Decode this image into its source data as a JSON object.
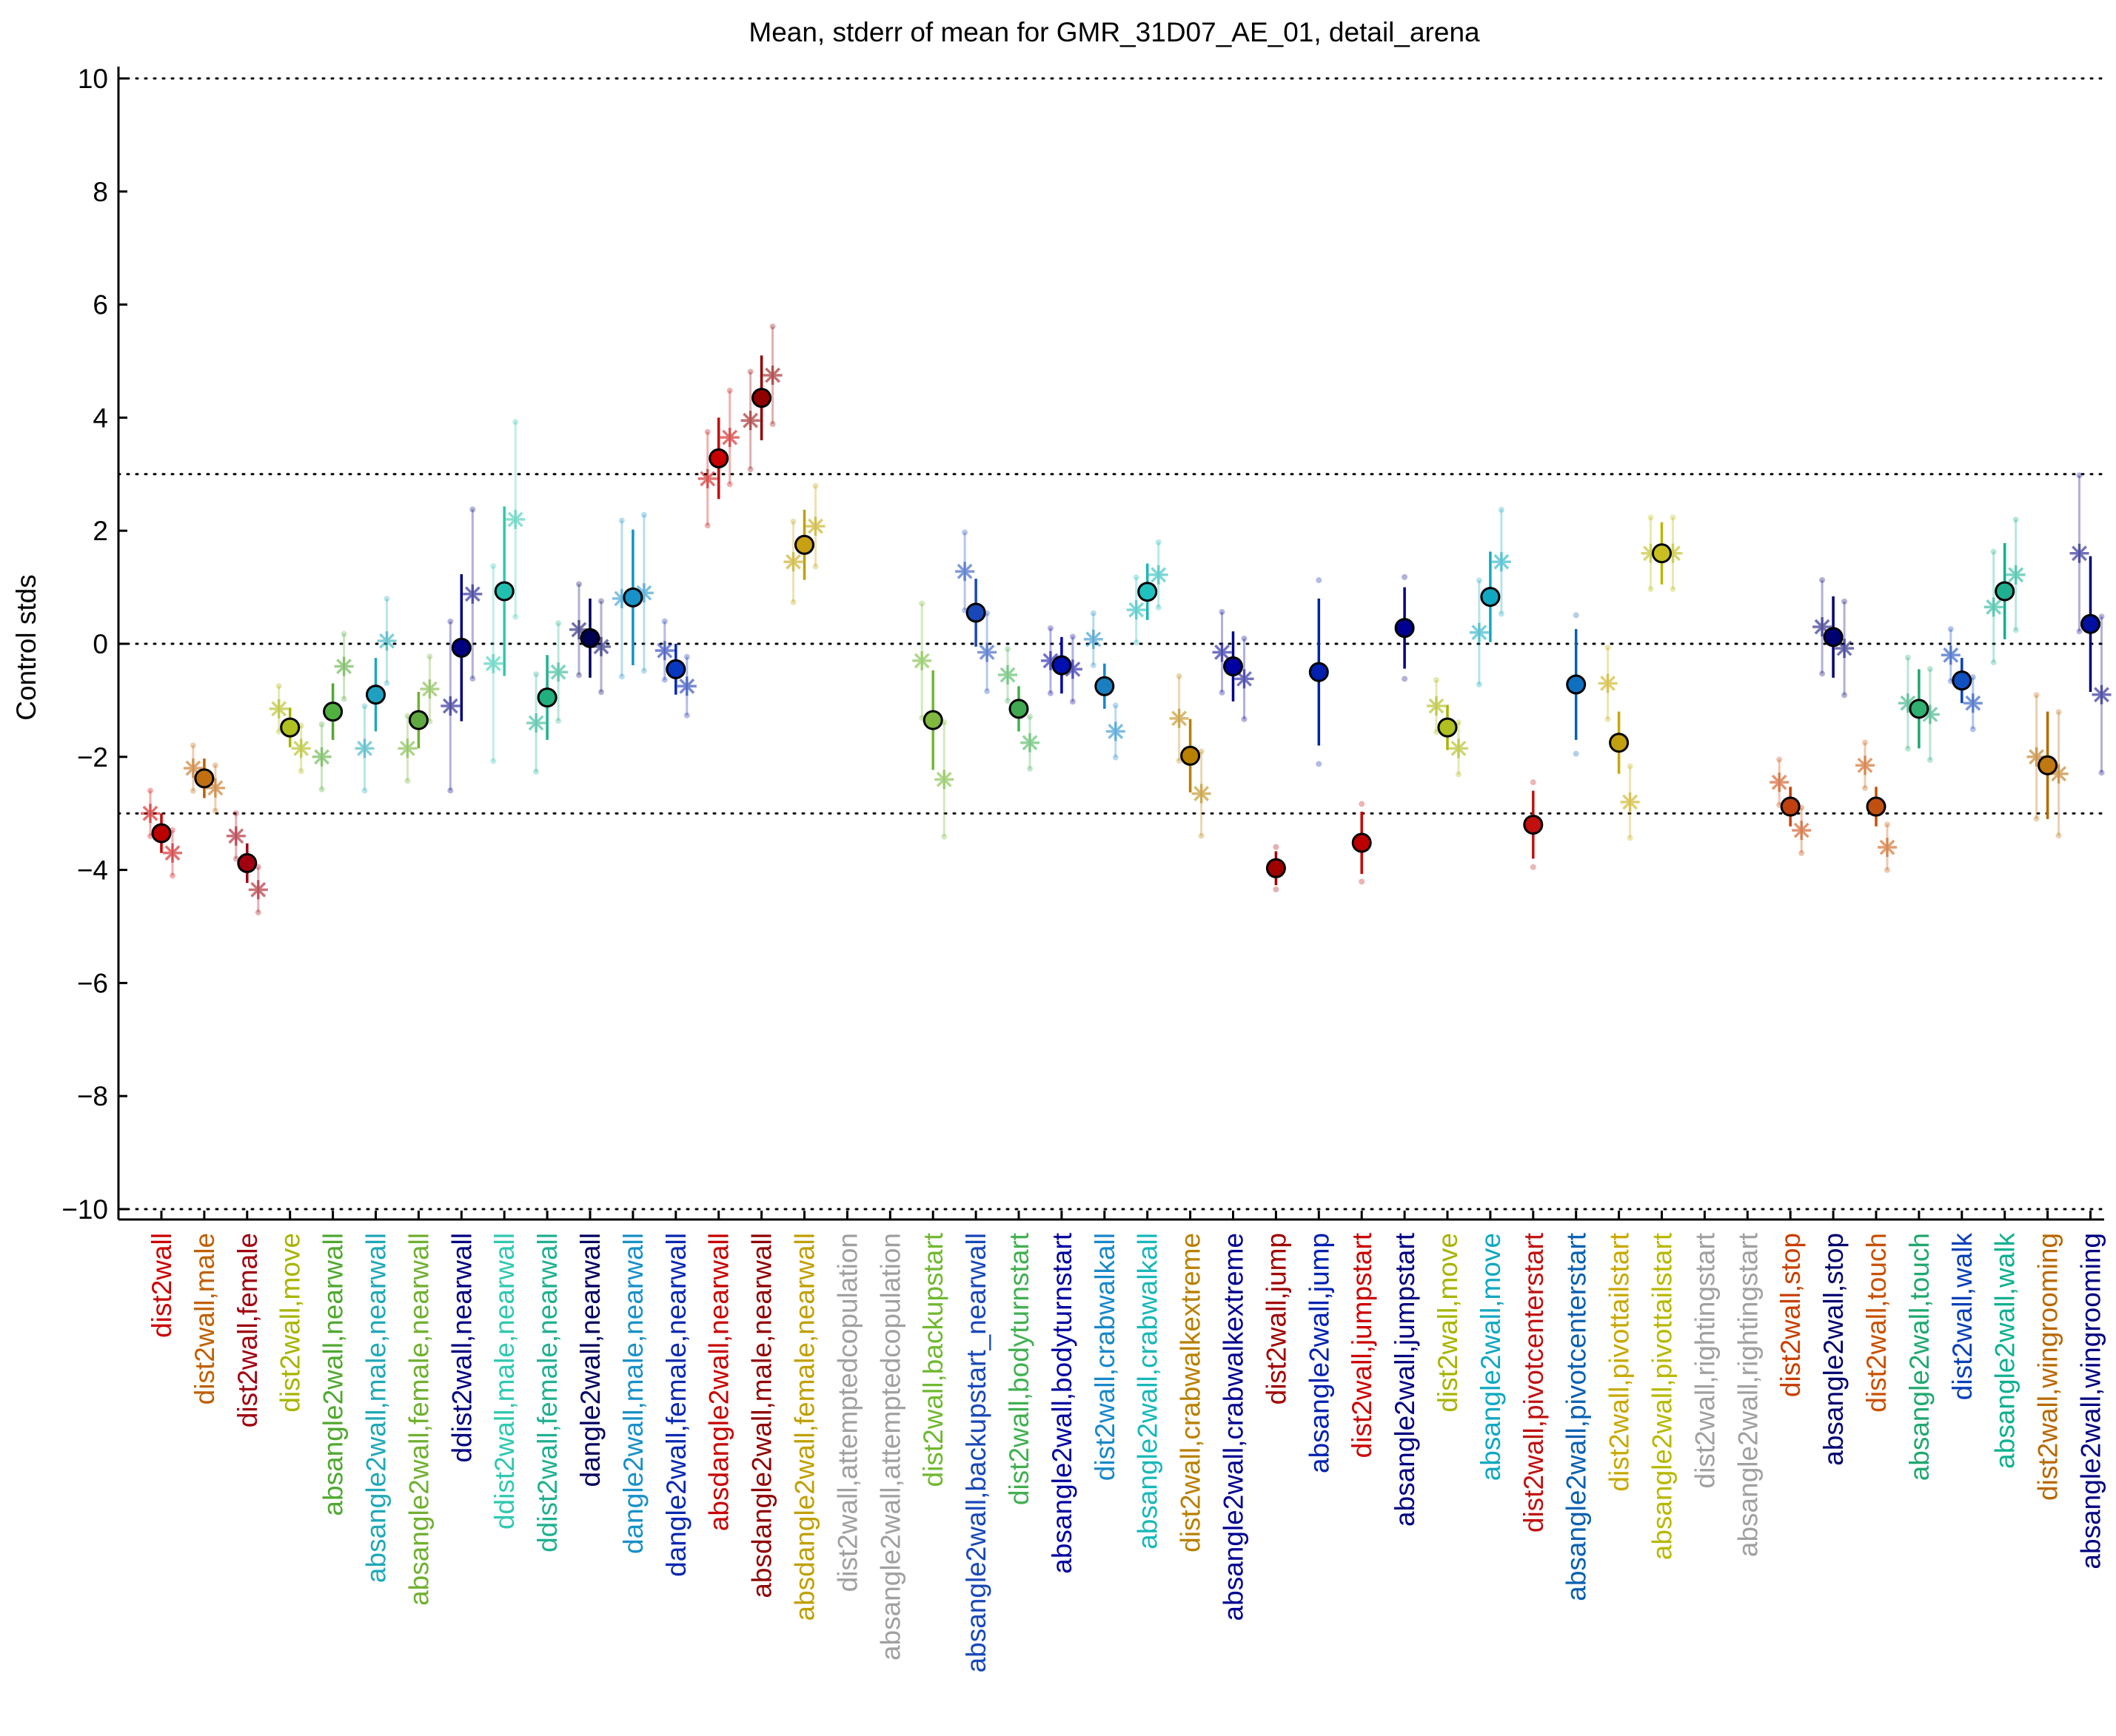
{
  "chart_data": {
    "type": "scatter",
    "title": "Mean, stderr of mean for GMR_31D07_AE_01, detail_arena",
    "ylabel": "Control stds",
    "ylim": [
      -10,
      10
    ],
    "yticks": [
      10,
      8,
      6,
      4,
      2,
      0,
      -2,
      -4,
      -6,
      -8,
      -10
    ],
    "ytick_labels": [
      "10",
      "8",
      "6",
      "4",
      "2",
      "0",
      "−2",
      "−4",
      "−6",
      "−8",
      "−10"
    ],
    "reference_lines": [
      10,
      3,
      0,
      -3,
      -10
    ],
    "grid": false,
    "legend": "none",
    "categories": [
      {
        "label": "dist2wall",
        "color": "#cc0000",
        "mean": -3.35,
        "err": 0.35,
        "male": -3.0,
        "female": -3.7,
        "fill": "#bb0000"
      },
      {
        "label": "dist2wall,male",
        "color": "#c06000",
        "mean": -2.38,
        "err": 0.35,
        "male": -2.2,
        "female": -2.55,
        "fill": "#c07010"
      },
      {
        "label": "dist2wall,female",
        "color": "#a00010",
        "mean": -3.88,
        "err": 0.35,
        "male": -3.4,
        "female": -4.35,
        "fill": "#a00010"
      },
      {
        "label": "dist2wall,move",
        "color": "#a8b400",
        "mean": -1.48,
        "err": 0.35,
        "male": -1.15,
        "female": -1.85,
        "fill": "#b0c020"
      },
      {
        "label": "absangle2wall,nearwall",
        "color": "#50a830",
        "mean": -1.2,
        "err": 0.5,
        "male": -2.0,
        "female": -0.4,
        "fill": "#50b040"
      },
      {
        "label": "absangle2wall,male,nearwall",
        "color": "#20a8b8",
        "mean": -0.9,
        "err": 0.65,
        "male": -1.85,
        "female": 0.05,
        "fill": "#20a0c0"
      },
      {
        "label": "absangle2wall,female,nearwall",
        "color": "#70b030",
        "mean": -1.35,
        "err": 0.5,
        "male": -1.85,
        "female": -0.8,
        "fill": "#60a840"
      },
      {
        "label": "ddist2wall,nearwall",
        "color": "#000080",
        "mean": -0.07,
        "err": 1.3,
        "male": -1.1,
        "female": 0.88,
        "fill": "#000080"
      },
      {
        "label": "ddist2wall,male,nearwall",
        "color": "#30c8b0",
        "mean": 0.93,
        "err": 1.5,
        "male": -0.35,
        "female": 2.2,
        "fill": "#20c0b0"
      },
      {
        "label": "ddist2wall,female,nearwall",
        "color": "#20b090",
        "mean": -0.95,
        "err": 0.75,
        "male": -1.4,
        "female": -0.5,
        "fill": "#20b080"
      },
      {
        "label": "dangle2wall,nearwall",
        "color": "#000060",
        "mean": 0.1,
        "err": 0.7,
        "male": 0.25,
        "female": -0.05,
        "fill": "#000050"
      },
      {
        "label": "dangle2wall,male,nearwall",
        "color": "#1890c8",
        "mean": 0.82,
        "err": 1.2,
        "male": 0.8,
        "female": 0.9,
        "fill": "#1890c8"
      },
      {
        "label": "dangle2wall,female,nearwall",
        "color": "#0828b0",
        "mean": -0.45,
        "err": 0.45,
        "male": -0.12,
        "female": -0.75,
        "fill": "#0838c0"
      },
      {
        "label": "absdangle2wall,nearwall",
        "color": "#c80000",
        "mean": 3.28,
        "err": 0.72,
        "male": 2.92,
        "female": 3.65,
        "fill": "#c80000"
      },
      {
        "label": "absdangle2wall,male,nearwall",
        "color": "#900000",
        "mean": 4.35,
        "err": 0.75,
        "male": 3.95,
        "female": 4.75,
        "fill": "#900000"
      },
      {
        "label": "absdangle2wall,female,nearwall",
        "color": "#c0a000",
        "mean": 1.75,
        "err": 0.62,
        "male": 1.45,
        "female": 2.08,
        "fill": "#c8a010"
      },
      {
        "label": "dist2wall,attemptedcopulation",
        "color": "#a0a0a0"
      },
      {
        "label": "absangle2wall,attemptedcopulation",
        "color": "#a0a0a0"
      },
      {
        "label": "dist2wall,backupstart",
        "color": "#70b830",
        "mean": -1.35,
        "err": 0.88,
        "male": -0.3,
        "female": -2.4,
        "fill": "#80b840"
      },
      {
        "label": "absangle2wall,backupstart_nearwall",
        "color": "#1848b8",
        "mean": 0.55,
        "err": 0.6,
        "male": 1.28,
        "female": -0.15,
        "fill": "#1848b8"
      },
      {
        "label": "dist2wall,bodyturnstart",
        "color": "#40b050",
        "mean": -1.15,
        "err": 0.4,
        "male": -0.55,
        "female": -1.75,
        "fill": "#40a850"
      },
      {
        "label": "absangle2wall,bodyturnstart",
        "color": "#0000a0",
        "mean": -0.38,
        "err": 0.5,
        "male": -0.3,
        "female": -0.45,
        "fill": "#0010b0"
      },
      {
        "label": "dist2wall,crabwalkall",
        "color": "#1888c8",
        "mean": -0.75,
        "err": 0.4,
        "male": 0.08,
        "female": -1.55,
        "fill": "#1880c0"
      },
      {
        "label": "absangle2wall,crabwalkall",
        "color": "#18b8b8",
        "mean": 0.92,
        "err": 0.5,
        "male": 0.6,
        "female": 1.22,
        "fill": "#20c0c0"
      },
      {
        "label": "dist2wall,crabwalkextreme",
        "color": "#b88000",
        "mean": -1.98,
        "err": 0.65,
        "male": -1.32,
        "female": -2.65,
        "fill": "#b88000"
      },
      {
        "label": "absangle2wall,crabwalkextreme",
        "color": "#000090",
        "mean": -0.4,
        "err": 0.62,
        "male": -0.15,
        "female": -0.62,
        "fill": "#0000a0"
      },
      {
        "label": "dist2wall,jump",
        "color": "#a00000",
        "mean": -3.97,
        "err": 0.3,
        "fill": "#a00000"
      },
      {
        "label": "absangle2wall,jump",
        "color": "#0020b0",
        "mean": -0.5,
        "err": 1.3,
        "fill": "#0020b0"
      },
      {
        "label": "dist2wall,jumpstart",
        "color": "#cc0000",
        "mean": -3.52,
        "err": 0.55,
        "fill": "#bb0000"
      },
      {
        "label": "absangle2wall,jumpstart",
        "color": "#000080",
        "mean": 0.28,
        "err": 0.72,
        "fill": "#000090"
      },
      {
        "label": "dist2wall,move",
        "color": "#a8b400",
        "mean": -1.48,
        "err": 0.4,
        "male": -1.1,
        "female": -1.85,
        "fill": "#b0c020"
      },
      {
        "label": "absangle2wall,move",
        "color": "#10a8c0",
        "mean": 0.83,
        "err": 0.8,
        "male": 0.2,
        "female": 1.45,
        "fill": "#10a8c0"
      },
      {
        "label": "dist2wall,pivotcenterstart",
        "color": "#c01010",
        "mean": -3.2,
        "err": 0.6,
        "fill": "#c01010"
      },
      {
        "label": "absangle2wall,pivotcenterstart",
        "color": "#0860b0",
        "mean": -0.72,
        "err": 0.98,
        "fill": "#1070c0"
      },
      {
        "label": "dist2wall,pivottailstart",
        "color": "#c8a800",
        "mean": -1.75,
        "err": 0.55,
        "male": -0.7,
        "female": -2.8,
        "fill": "#c0a010"
      },
      {
        "label": "absangle2wall,pivottailstart",
        "color": "#b8b800",
        "mean": 1.6,
        "err": 0.55,
        "male": 1.6,
        "female": 1.6,
        "fill": "#c8c020"
      },
      {
        "label": "dist2wall,rightingstart",
        "color": "#a0a0a0"
      },
      {
        "label": "absangle2wall,rightingstart",
        "color": "#a0a0a0"
      },
      {
        "label": "dist2wall,stop",
        "color": "#c84000",
        "mean": -2.88,
        "err": 0.35,
        "male": -2.45,
        "female": -3.3,
        "fill": "#c04010"
      },
      {
        "label": "absangle2wall,stop",
        "color": "#000070",
        "mean": 0.12,
        "err": 0.72,
        "male": 0.3,
        "female": -0.08,
        "fill": "#000070"
      },
      {
        "label": "dist2wall,touch",
        "color": "#c85000",
        "mean": -2.88,
        "err": 0.35,
        "male": -2.15,
        "female": -3.6,
        "fill": "#c05010"
      },
      {
        "label": "absangle2wall,touch",
        "color": "#20a870",
        "mean": -1.15,
        "err": 0.7,
        "male": -1.05,
        "female": -1.25,
        "fill": "#30b070"
      },
      {
        "label": "dist2wall,walk",
        "color": "#0840b8",
        "mean": -0.65,
        "err": 0.4,
        "male": -0.2,
        "female": -1.05,
        "fill": "#1050c0"
      },
      {
        "label": "absangle2wall,walk",
        "color": "#10b090",
        "mean": 0.93,
        "err": 0.85,
        "male": 0.65,
        "female": 1.22,
        "fill": "#20b090"
      },
      {
        "label": "dist2wall,wingrooming",
        "color": "#b86800",
        "mean": -2.15,
        "err": 0.95,
        "male": -2.0,
        "female": -2.3,
        "fill": "#c07810"
      },
      {
        "label": "absangle2wall,wingrooming",
        "color": "#000080",
        "mean": 0.35,
        "err": 1.2,
        "male": 1.6,
        "female": -0.9,
        "fill": "#0010a0"
      }
    ]
  }
}
